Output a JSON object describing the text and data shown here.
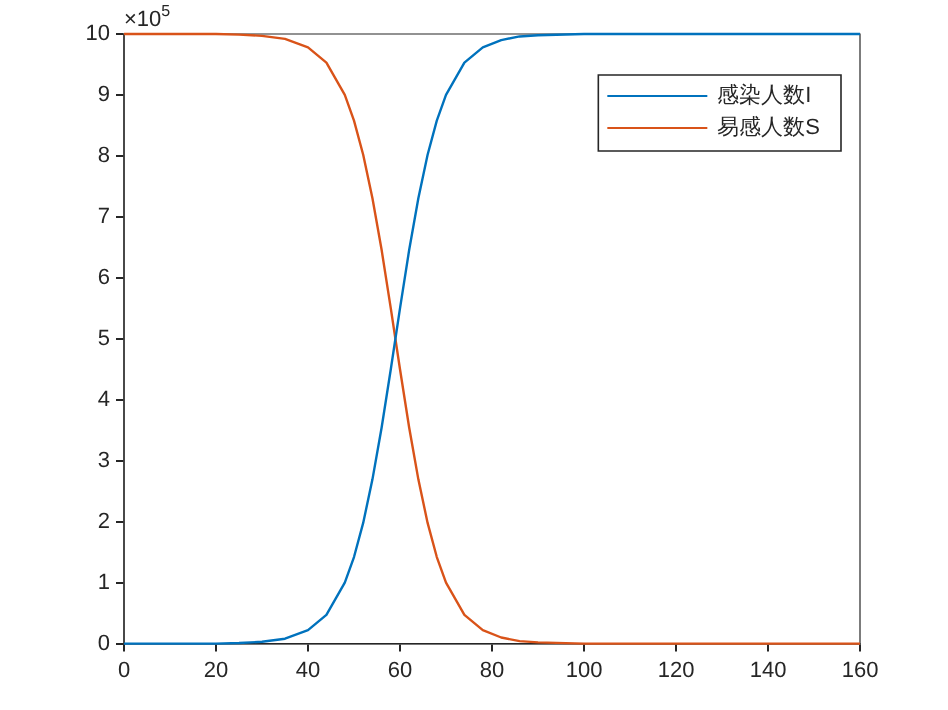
{
  "chart_data": {
    "type": "line",
    "x": [
      0,
      10,
      20,
      25,
      30,
      35,
      40,
      44,
      48,
      50,
      52,
      54,
      56,
      58,
      60,
      62,
      64,
      66,
      68,
      70,
      74,
      78,
      82,
      86,
      90,
      100,
      120,
      140,
      160
    ],
    "series": [
      {
        "name": "感染人数I",
        "color": "#0072bd",
        "values": [
          0,
          0,
          0,
          0.01,
          0.03,
          0.08,
          0.22,
          0.47,
          1,
          1.42,
          1.98,
          2.69,
          3.54,
          4.5,
          5.5,
          6.46,
          7.31,
          8.02,
          8.58,
          9,
          9.53,
          9.78,
          9.9,
          9.96,
          9.98,
          10,
          10,
          10,
          10
        ]
      },
      {
        "name": "易感人数S",
        "color": "#d95319",
        "values": [
          10,
          10,
          10,
          9.99,
          9.97,
          9.92,
          9.78,
          9.53,
          9,
          8.58,
          8.02,
          7.31,
          6.46,
          5.5,
          4.5,
          3.54,
          2.69,
          1.98,
          1.42,
          1,
          0.47,
          0.22,
          0.1,
          0.04,
          0.02,
          0,
          0,
          0,
          0
        ]
      }
    ],
    "xlim": [
      0,
      160
    ],
    "xticks": [
      0,
      20,
      40,
      60,
      80,
      100,
      120,
      140,
      160
    ],
    "ylim": [
      0,
      10
    ],
    "yticks": [
      0,
      1,
      2,
      3,
      4,
      5,
      6,
      7,
      8,
      9,
      10
    ],
    "annotations": [
      "×10$^{5}$"
    ],
    "legend": "top right",
    "grid": false,
    "marker": "none",
    "line_style": "solid"
  }
}
